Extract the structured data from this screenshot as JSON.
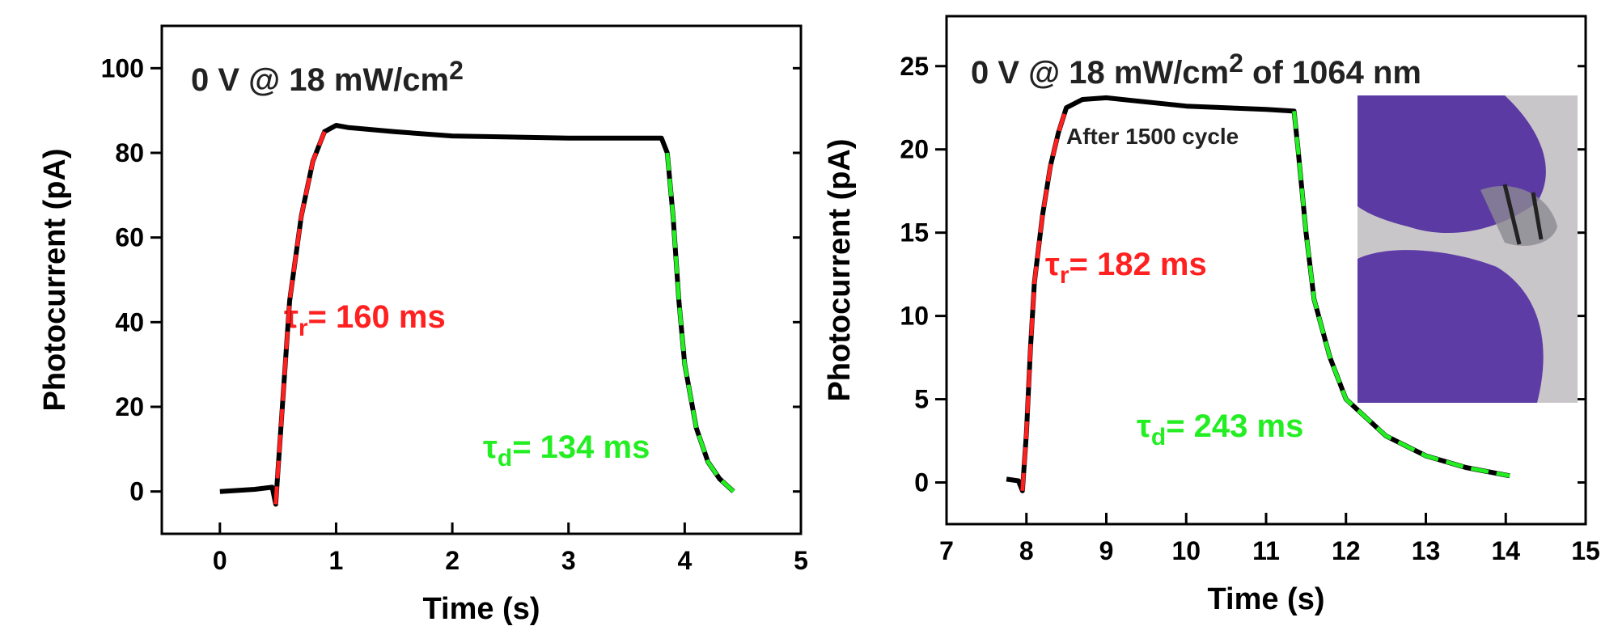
{
  "chart_data": [
    {
      "type": "line",
      "annotations": [
        {
          "text": "0 V @ 18 mW/cm",
          "sup": "2"
        },
        {
          "text": "τ",
          "sub": "r",
          "rest": "= 160 ms"
        },
        {
          "text": "τ",
          "sub": "d",
          "rest": "= 134 ms"
        }
      ],
      "x_label": "Time (s)",
      "y_label": "Photocurrent (pA)",
      "xlim": [
        -0.5,
        5
      ],
      "xticks": [
        0,
        1,
        2,
        3,
        4,
        5
      ],
      "ylim": [
        -10,
        110
      ],
      "yticks": [
        0,
        20,
        40,
        60,
        80,
        100
      ],
      "series": [
        {
          "color": "#000000",
          "dashed": false,
          "x": [
            0,
            0.3,
            0.45,
            0.48,
            0.5,
            0.55,
            0.6,
            0.7,
            0.8,
            0.9,
            1.0,
            1.1,
            1.5,
            2,
            3,
            3.8,
            3.85,
            3.9,
            3.95,
            4.0,
            4.1,
            4.2,
            4.3,
            4.42
          ],
          "values": [
            0,
            0.5,
            1,
            -3,
            5,
            25,
            45,
            65,
            78,
            85,
            86.5,
            86,
            85,
            84,
            83.5,
            83.5,
            80,
            65,
            45,
            30,
            15,
            7,
            3,
            0
          ]
        },
        {
          "color": "#ff2020",
          "dashed": true,
          "x": [
            0.48,
            0.5,
            0.55,
            0.6,
            0.7,
            0.8,
            0.9
          ],
          "values": [
            -3,
            5,
            25,
            45,
            65,
            78,
            85
          ]
        },
        {
          "color": "#22ee22",
          "dashed": true,
          "x": [
            3.85,
            3.9,
            3.95,
            4.0,
            4.1,
            4.2,
            4.3,
            4.42
          ],
          "values": [
            80,
            65,
            45,
            30,
            15,
            7,
            3,
            0
          ]
        }
      ]
    },
    {
      "type": "line",
      "annotations": [
        {
          "text": "0 V @ 18 mW/cm",
          "sup": "2",
          "rest": " of 1064 nm"
        },
        {
          "text": "After 1500 cycle"
        },
        {
          "text": "τ",
          "sub": "r",
          "rest": "= 182 ms"
        },
        {
          "text": "τ",
          "sub": "d",
          "rest": "= 243 ms"
        }
      ],
      "x_label": "Time (s)",
      "y_label": "Photocurrent (pA)",
      "xlim": [
        7,
        15
      ],
      "xticks": [
        7,
        8,
        9,
        10,
        11,
        12,
        13,
        14,
        15
      ],
      "ylim": [
        -2.5,
        28
      ],
      "yticks": [
        0,
        5,
        10,
        15,
        20,
        25
      ],
      "series": [
        {
          "color": "#000000",
          "dashed": false,
          "x": [
            7.75,
            7.9,
            7.95,
            8.0,
            8.05,
            8.1,
            8.2,
            8.3,
            8.4,
            8.5,
            8.7,
            9,
            10,
            11,
            11.35,
            11.4,
            11.5,
            11.6,
            11.8,
            12,
            12.5,
            13,
            13.5,
            14.05
          ],
          "values": [
            0.2,
            0.1,
            -0.5,
            3,
            8,
            12,
            16,
            19,
            21,
            22.5,
            23,
            23.1,
            22.6,
            22.4,
            22.3,
            20,
            15,
            11,
            7.5,
            5,
            2.8,
            1.6,
            0.9,
            0.4
          ]
        },
        {
          "color": "#ff2020",
          "dashed": true,
          "x": [
            7.95,
            8.0,
            8.05,
            8.1,
            8.2,
            8.3,
            8.4,
            8.5
          ],
          "values": [
            -0.5,
            3,
            8,
            12,
            16,
            19,
            21,
            22.5
          ]
        },
        {
          "color": "#22ee22",
          "dashed": true,
          "x": [
            11.35,
            11.4,
            11.5,
            11.6,
            11.8,
            12,
            12.5,
            13,
            13.5,
            14.05
          ],
          "values": [
            22.3,
            20,
            15,
            11,
            7.5,
            5,
            2.8,
            1.6,
            0.9,
            0.4
          ]
        }
      ]
    }
  ]
}
